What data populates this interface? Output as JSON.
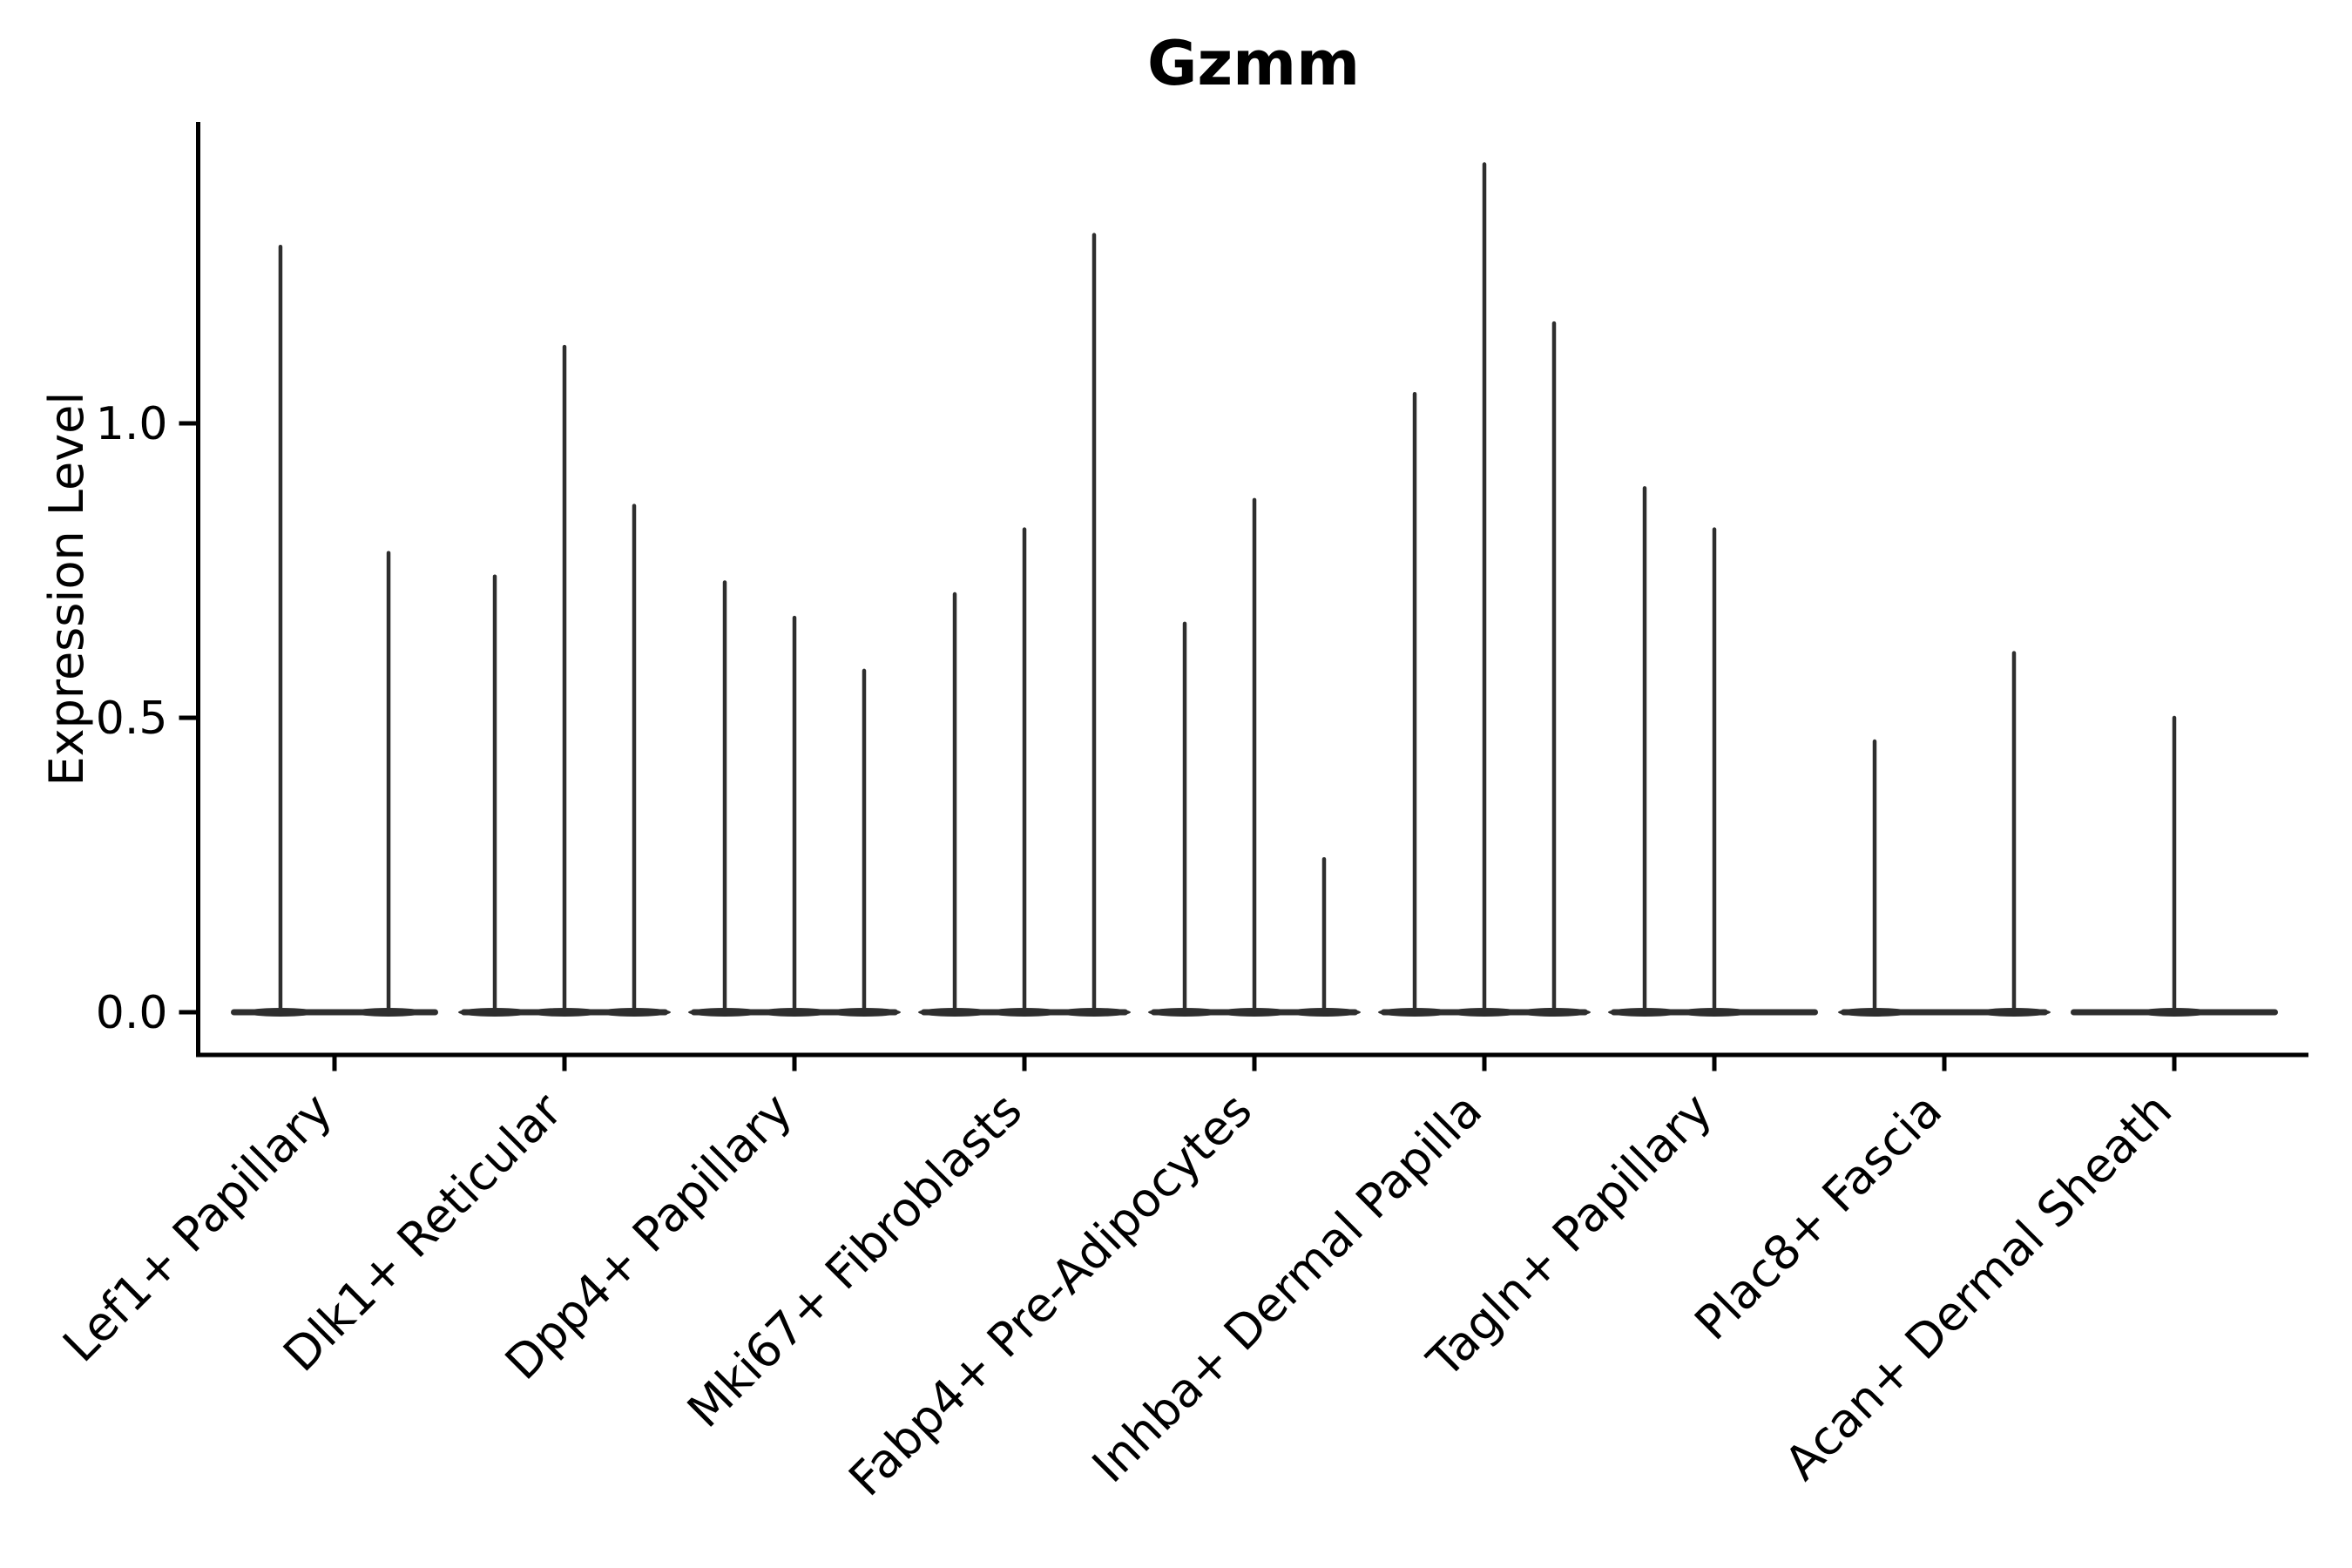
{
  "chart_data": {
    "type": "violin",
    "title": "Gzmm",
    "ylabel": "Expression Level",
    "xlabel": "",
    "ylim": [
      0,
      1.51
    ],
    "yticks": [
      "0.0",
      "0.5",
      "1.0"
    ],
    "ytick_values": [
      0.0,
      0.5,
      1.0
    ],
    "grid": false,
    "legend": "none",
    "x_tick_rotation": 45,
    "categories": [
      "Lef1+ Papillary",
      "Dlk1+ Reticular",
      "Dpp4+ Papillary",
      "Mki67+ Fibroblasts",
      "Fabp4+ Pre-Adipocytes",
      "Inhba+ Dermal Papilla",
      "Tagln+ Papillary",
      "Plac8+ Fascia",
      "Acan+ Dermal Sheath"
    ],
    "groups": [
      {
        "label": "Lef1+ Papillary",
        "violins": [
          {
            "pos": -0.235,
            "max": 1.3
          },
          {
            "pos": 0.235,
            "max": 0.78
          }
        ]
      },
      {
        "label": "Dlk1+ Reticular",
        "violins": [
          {
            "pos": -0.303,
            "max": 0.74
          },
          {
            "pos": 0.0,
            "max": 1.13
          },
          {
            "pos": 0.303,
            "max": 0.86
          }
        ]
      },
      {
        "label": "Dpp4+ Papillary",
        "violins": [
          {
            "pos": -0.303,
            "max": 0.73
          },
          {
            "pos": 0.0,
            "max": 0.67
          },
          {
            "pos": 0.303,
            "max": 0.58
          }
        ]
      },
      {
        "label": "Mki67+ Fibroblasts",
        "violins": [
          {
            "pos": -0.303,
            "max": 0.71
          },
          {
            "pos": 0.0,
            "max": 0.82
          },
          {
            "pos": 0.303,
            "max": 1.32
          }
        ]
      },
      {
        "label": "Fabp4+ Pre-Adipocytes",
        "violins": [
          {
            "pos": -0.303,
            "max": 0.66
          },
          {
            "pos": 0.0,
            "max": 0.87
          },
          {
            "pos": 0.303,
            "max": 0.26
          }
        ]
      },
      {
        "label": "Inhba+ Dermal Papilla",
        "violins": [
          {
            "pos": -0.303,
            "max": 1.05
          },
          {
            "pos": 0.0,
            "max": 1.44
          },
          {
            "pos": 0.303,
            "max": 1.17
          }
        ]
      },
      {
        "label": "Tagln+ Papillary",
        "violins": [
          {
            "pos": -0.303,
            "max": 0.89
          },
          {
            "pos": 0.0,
            "max": 0.82
          }
        ]
      },
      {
        "label": "Plac8+ Fascia",
        "violins": [
          {
            "pos": -0.303,
            "max": 0.46
          },
          {
            "pos": 0.303,
            "max": 0.61
          }
        ]
      },
      {
        "label": "Acan+ Dermal Sheath",
        "violins": [
          {
            "pos": 0.0,
            "max": 0.5
          }
        ]
      }
    ],
    "colors": {
      "violin": "#2e2e2e",
      "axis": "#000000",
      "text": "#000000",
      "background": "#ffffff"
    }
  }
}
